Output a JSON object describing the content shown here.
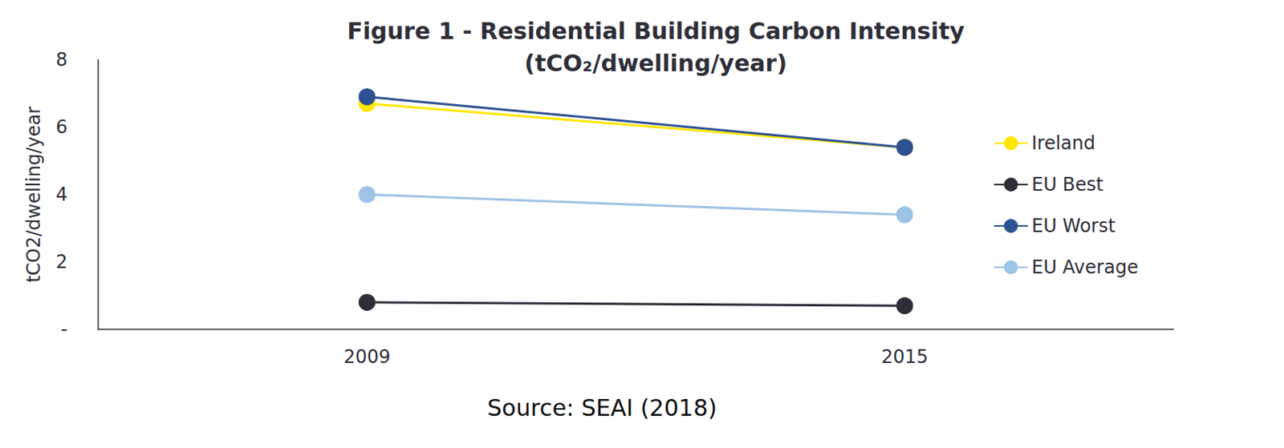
{
  "chart_data": {
    "type": "line",
    "title": "Figure 1 - Residential Building Carbon Intensity\n(tCO₂/dwelling/year)",
    "y_label": "tCO2/dwelling/year",
    "annotations": [
      "Source: SEAI (2018)"
    ],
    "categories": [
      "2009",
      "2015"
    ],
    "series": [
      {
        "name": "Ireland",
        "color": "#ffe600",
        "values": [
          6.7,
          5.4
        ]
      },
      {
        "name": "EU Best",
        "color": "#2e2e38",
        "values": [
          0.8,
          0.7
        ]
      },
      {
        "name": "EU Worst",
        "color": "#2d5293",
        "values": [
          6.9,
          5.4
        ]
      },
      {
        "name": "EU Average",
        "color": "#9dc3e6",
        "values": [
          4.0,
          3.4
        ]
      }
    ],
    "ylim": [
      0,
      8
    ],
    "yticks": [
      {
        "value": 0,
        "label": "-"
      },
      2,
      4,
      6,
      8
    ],
    "grid": false,
    "legend": "right",
    "marker": "circle"
  }
}
